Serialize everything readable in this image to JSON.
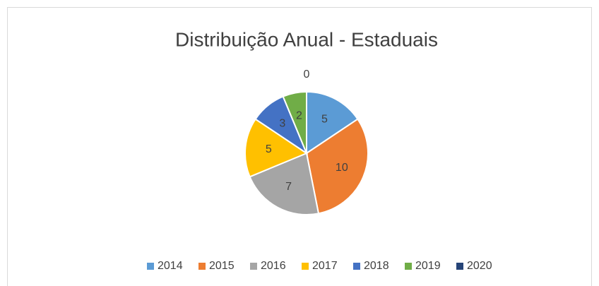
{
  "chart_data": {
    "type": "pie",
    "title": "Distribuição Anual - Estaduais",
    "categories": [
      "2014",
      "2015",
      "2016",
      "2017",
      "2018",
      "2019",
      "2020"
    ],
    "values": [
      5,
      10,
      7,
      5,
      3,
      2,
      0
    ],
    "colors": [
      "#5b9bd5",
      "#ed7d31",
      "#a5a5a5",
      "#ffc000",
      "#4472c4",
      "#70ad47",
      "#264478"
    ],
    "legend": "bottom"
  }
}
